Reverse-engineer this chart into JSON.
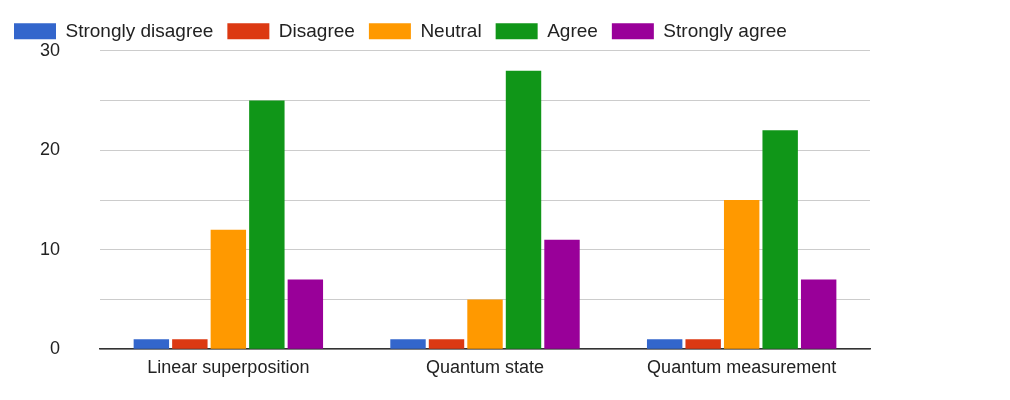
{
  "chart_data": {
    "type": "bar",
    "categories": [
      "Linear superposition",
      "Quantum state",
      "Quantum measurement"
    ],
    "series": [
      {
        "name": "Strongly disagree",
        "color": "#3366cc",
        "values": [
          1,
          1,
          1
        ]
      },
      {
        "name": "Disagree",
        "color": "#dc3912",
        "values": [
          1,
          1,
          1
        ]
      },
      {
        "name": "Neutral",
        "color": "#ff9900",
        "values": [
          12,
          5,
          15
        ]
      },
      {
        "name": "Agree",
        "color": "#109618",
        "values": [
          25,
          28,
          22
        ]
      },
      {
        "name": "Strongly agree",
        "color": "#990099",
        "values": [
          7,
          11,
          7
        ]
      }
    ],
    "ylim": [
      0,
      30
    ],
    "yticks": [
      0,
      {
        "value": 5,
        "label": null
      },
      10,
      {
        "value": 15,
        "label": null
      },
      20,
      {
        "value": 25,
        "label": null
      },
      30
    ],
    "grid": "y",
    "legend": "top"
  }
}
